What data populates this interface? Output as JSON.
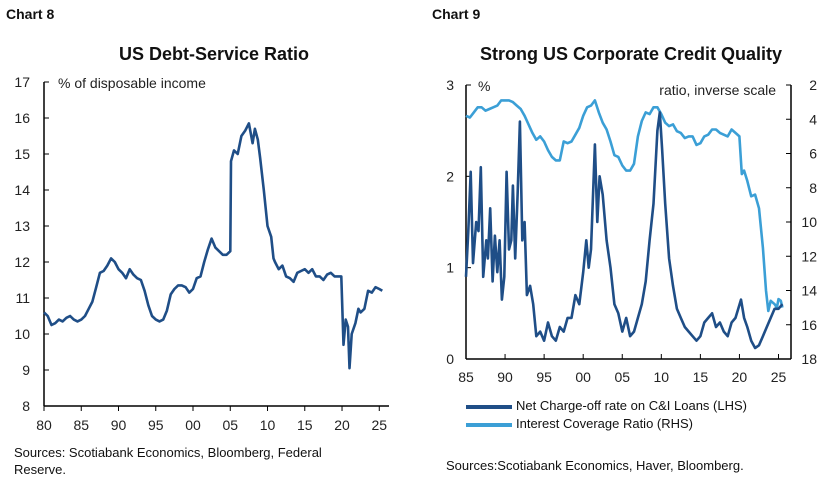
{
  "chart_data": [
    {
      "label": "Chart 8",
      "type": "line",
      "title": "US Debt-Service Ratio",
      "unit_label": "% of disposable income",
      "xlim": [
        1980,
        2025.5
      ],
      "ylim": [
        8,
        17
      ],
      "x_ticks": [
        1980,
        1985,
        1990,
        1995,
        2000,
        2005,
        2010,
        2015,
        2020,
        2025
      ],
      "x_tick_labels": [
        "80",
        "85",
        "90",
        "95",
        "00",
        "05",
        "10",
        "15",
        "20",
        "25"
      ],
      "y_ticks": [
        8,
        9,
        10,
        11,
        12,
        13,
        14,
        15,
        16,
        17
      ],
      "color": "#1f4e87",
      "grid": false,
      "sources": "Sources: Scotiabank Economics, Bloomberg, Federal Reserve.",
      "series": [
        {
          "x": [
            1980,
            1980.5,
            1981,
            1981.5,
            1982,
            1982.5,
            1983,
            1983.5,
            1984,
            1984.5,
            1985,
            1985.5,
            1986,
            1986.5,
            1987,
            1987.5,
            1988,
            1988.5,
            1989,
            1989.5,
            1990,
            1990.5,
            1991,
            1991.5,
            1992,
            1992.5,
            1993,
            1993.5,
            1994,
            1994.5,
            1995,
            1995.5,
            1996,
            1996.5,
            1997,
            1997.5,
            1998,
            1998.5,
            1999,
            1999.5,
            2000,
            2000.5,
            2001,
            2001.5,
            2002,
            2002.5,
            2003,
            2003.5,
            2004,
            2004.5,
            2005,
            2005.1,
            2005.5,
            2006,
            2006.5,
            2007,
            2007.5,
            2008,
            2008.3,
            2008.7,
            2009,
            2009.5,
            2010,
            2010.5,
            2010.8,
            2011,
            2011.5,
            2012,
            2012.5,
            2013,
            2013.5,
            2014,
            2014.5,
            2015,
            2015.5,
            2016,
            2016.5,
            2017,
            2017.5,
            2018,
            2018.5,
            2019,
            2019.9,
            2020.2,
            2020.5,
            2020.8,
            2021,
            2021.3,
            2021.8,
            2022.2,
            2022.5,
            2023,
            2023.5,
            2024,
            2024.5,
            2025,
            2025.4
          ],
          "y": [
            10.6,
            10.5,
            10.25,
            10.3,
            10.4,
            10.35,
            10.45,
            10.5,
            10.4,
            10.35,
            10.4,
            10.5,
            10.7,
            10.9,
            11.3,
            11.7,
            11.75,
            11.9,
            12.1,
            12.0,
            11.8,
            11.7,
            11.55,
            11.8,
            11.65,
            11.55,
            11.5,
            11.2,
            10.8,
            10.5,
            10.4,
            10.35,
            10.4,
            10.65,
            11.1,
            11.25,
            11.35,
            11.35,
            11.3,
            11.15,
            11.25,
            11.55,
            11.6,
            12.0,
            12.35,
            12.65,
            12.4,
            12.3,
            12.2,
            12.2,
            12.3,
            14.8,
            15.1,
            15.0,
            15.5,
            15.65,
            15.85,
            15.3,
            15.7,
            15.4,
            14.9,
            14.0,
            13.0,
            12.7,
            12.1,
            12.0,
            11.8,
            11.9,
            11.6,
            11.55,
            11.45,
            11.7,
            11.75,
            11.8,
            11.7,
            11.8,
            11.6,
            11.6,
            11.5,
            11.65,
            11.7,
            11.6,
            11.6,
            9.7,
            10.4,
            10.2,
            9.05,
            10.0,
            10.3,
            10.7,
            10.6,
            10.7,
            11.2,
            11.15,
            11.3,
            11.25,
            11.2
          ]
        }
      ]
    },
    {
      "label": "Chart 9",
      "type": "line",
      "title": "Strong US Corporate Credit Quality",
      "left_unit_label": "%",
      "right_unit_label": "ratio, inverse scale",
      "xlim": [
        1985,
        2026.6
      ],
      "ylim_left": [
        0,
        3
      ],
      "ylim_right": [
        18,
        2
      ],
      "right_axis_inverted": true,
      "x_ticks": [
        1985,
        1990,
        1995,
        2000,
        2005,
        2010,
        2015,
        2020,
        2025
      ],
      "x_tick_labels": [
        "85",
        "90",
        "95",
        "00",
        "05",
        "10",
        "15",
        "20",
        "25"
      ],
      "y_ticks_left": [
        0,
        1,
        2,
        3
      ],
      "y_ticks_right": [
        2,
        4,
        6,
        8,
        10,
        12,
        14,
        16,
        18
      ],
      "grid": false,
      "legend_placement": "bottom",
      "sources": "Sources:Scotiabank Economics, Haver, Bloomberg.",
      "series": [
        {
          "name": "Net Charge-off rate on C&I Loans (LHS)",
          "axis": "left",
          "color": "#1f4e87",
          "x": [
            1985,
            1985.3,
            1985.6,
            1985.9,
            1986.3,
            1986.6,
            1986.9,
            1987.2,
            1987.6,
            1987.8,
            1988.1,
            1988.4,
            1988.7,
            1989,
            1989.3,
            1989.6,
            1989.9,
            1990.2,
            1990.5,
            1990.8,
            1991,
            1991.3,
            1991.6,
            1991.9,
            1992.2,
            1992.5,
            1992.8,
            1993.2,
            1993.6,
            1994,
            1994.5,
            1995,
            1995.5,
            1996,
            1996.5,
            1997,
            1997.5,
            1998,
            1998.5,
            1999,
            1999.5,
            2000,
            2000.4,
            2000.7,
            2001,
            2001.5,
            2001.8,
            2002.1,
            2002.5,
            2003,
            2003.5,
            2004,
            2004.5,
            2005,
            2005.5,
            2006,
            2006.5,
            2007,
            2007.5,
            2008,
            2008.5,
            2009,
            2009.5,
            2009.8,
            2010.1,
            2010.5,
            2011,
            2011.5,
            2012,
            2012.5,
            2013,
            2013.5,
            2014,
            2014.5,
            2015,
            2015.5,
            2016,
            2016.5,
            2017,
            2017.5,
            2018,
            2018.5,
            2019,
            2019.5,
            2020.2,
            2020.6,
            2021,
            2021.5,
            2022,
            2022.5,
            2023,
            2023.5,
            2024,
            2024.5,
            2025,
            2025.5
          ],
          "y": [
            0.9,
            1.4,
            2.05,
            1.05,
            1.5,
            1.4,
            2.1,
            0.9,
            1.3,
            1.1,
            1.65,
            0.85,
            1.35,
            0.95,
            1.3,
            0.65,
            0.9,
            2.05,
            1.2,
            1.3,
            1.9,
            1.1,
            1.8,
            2.6,
            1.3,
            1.5,
            0.7,
            0.8,
            0.6,
            0.25,
            0.3,
            0.2,
            0.4,
            0.25,
            0.2,
            0.35,
            0.3,
            0.45,
            0.45,
            0.7,
            0.6,
            0.95,
            1.3,
            1.0,
            1.2,
            2.35,
            1.5,
            2.0,
            1.8,
            1.3,
            1.0,
            0.6,
            0.5,
            0.3,
            0.45,
            0.25,
            0.3,
            0.45,
            0.6,
            0.85,
            1.3,
            1.7,
            2.5,
            2.7,
            2.3,
            1.7,
            1.1,
            0.8,
            0.55,
            0.45,
            0.35,
            0.3,
            0.25,
            0.2,
            0.25,
            0.4,
            0.45,
            0.5,
            0.35,
            0.4,
            0.3,
            0.25,
            0.4,
            0.45,
            0.65,
            0.45,
            0.35,
            0.2,
            0.12,
            0.15,
            0.25,
            0.35,
            0.45,
            0.55,
            0.55,
            0.6
          ]
        },
        {
          "name": "Interest Coverage Ratio (RHS)",
          "axis": "right",
          "color": "#3b9fd6",
          "x": [
            1985,
            1985.5,
            1986,
            1986.5,
            1987,
            1987.5,
            1988,
            1988.5,
            1989,
            1989.5,
            1990,
            1990.5,
            1991,
            1991.5,
            1992,
            1992.5,
            1993,
            1993.5,
            1994,
            1994.5,
            1995,
            1995.5,
            1996,
            1996.5,
            1997,
            1997.5,
            1998,
            1998.5,
            1999,
            1999.5,
            2000,
            2000.5,
            2001,
            2001.5,
            2002,
            2002.5,
            2003,
            2003.5,
            2004,
            2004.5,
            2005,
            2005.5,
            2006,
            2006.5,
            2007,
            2007.5,
            2008,
            2008.5,
            2009,
            2009.5,
            2010,
            2010.5,
            2011,
            2011.5,
            2012,
            2012.5,
            2013,
            2013.5,
            2014,
            2014.5,
            2015,
            2015.5,
            2016,
            2016.5,
            2017,
            2017.5,
            2018,
            2018.5,
            2019,
            2019.5,
            2020,
            2020.3,
            2020.6,
            2021,
            2021.5,
            2022,
            2022.5,
            2023,
            2023.4,
            2023.7,
            2024,
            2024.5,
            2024.8,
            2025,
            2025.3,
            2025.5
          ],
          "y": [
            3.8,
            3.9,
            3.6,
            3.3,
            3.3,
            3.5,
            3.4,
            3.3,
            3.2,
            2.9,
            2.9,
            2.9,
            3.0,
            3.2,
            3.4,
            3.8,
            4.3,
            4.8,
            5.2,
            5.0,
            5.3,
            5.8,
            6.2,
            6.4,
            6.4,
            5.3,
            5.4,
            5.3,
            4.9,
            4.5,
            3.8,
            3.3,
            3.2,
            2.9,
            3.6,
            4.2,
            4.6,
            5.3,
            6.1,
            6.2,
            6.7,
            7.0,
            7.0,
            6.6,
            5.0,
            4.1,
            3.6,
            3.7,
            3.3,
            3.3,
            3.7,
            4.2,
            4.4,
            4.3,
            4.7,
            4.8,
            5.1,
            5.0,
            5.0,
            5.5,
            5.4,
            5.0,
            4.9,
            4.6,
            4.6,
            4.8,
            4.9,
            5.0,
            4.6,
            4.8,
            5.0,
            7.2,
            7.0,
            7.6,
            8.5,
            8.4,
            9.2,
            11.5,
            14.0,
            15.2,
            14.6,
            14.8,
            15.0,
            14.5,
            14.6,
            15.0
          ]
        }
      ]
    }
  ]
}
